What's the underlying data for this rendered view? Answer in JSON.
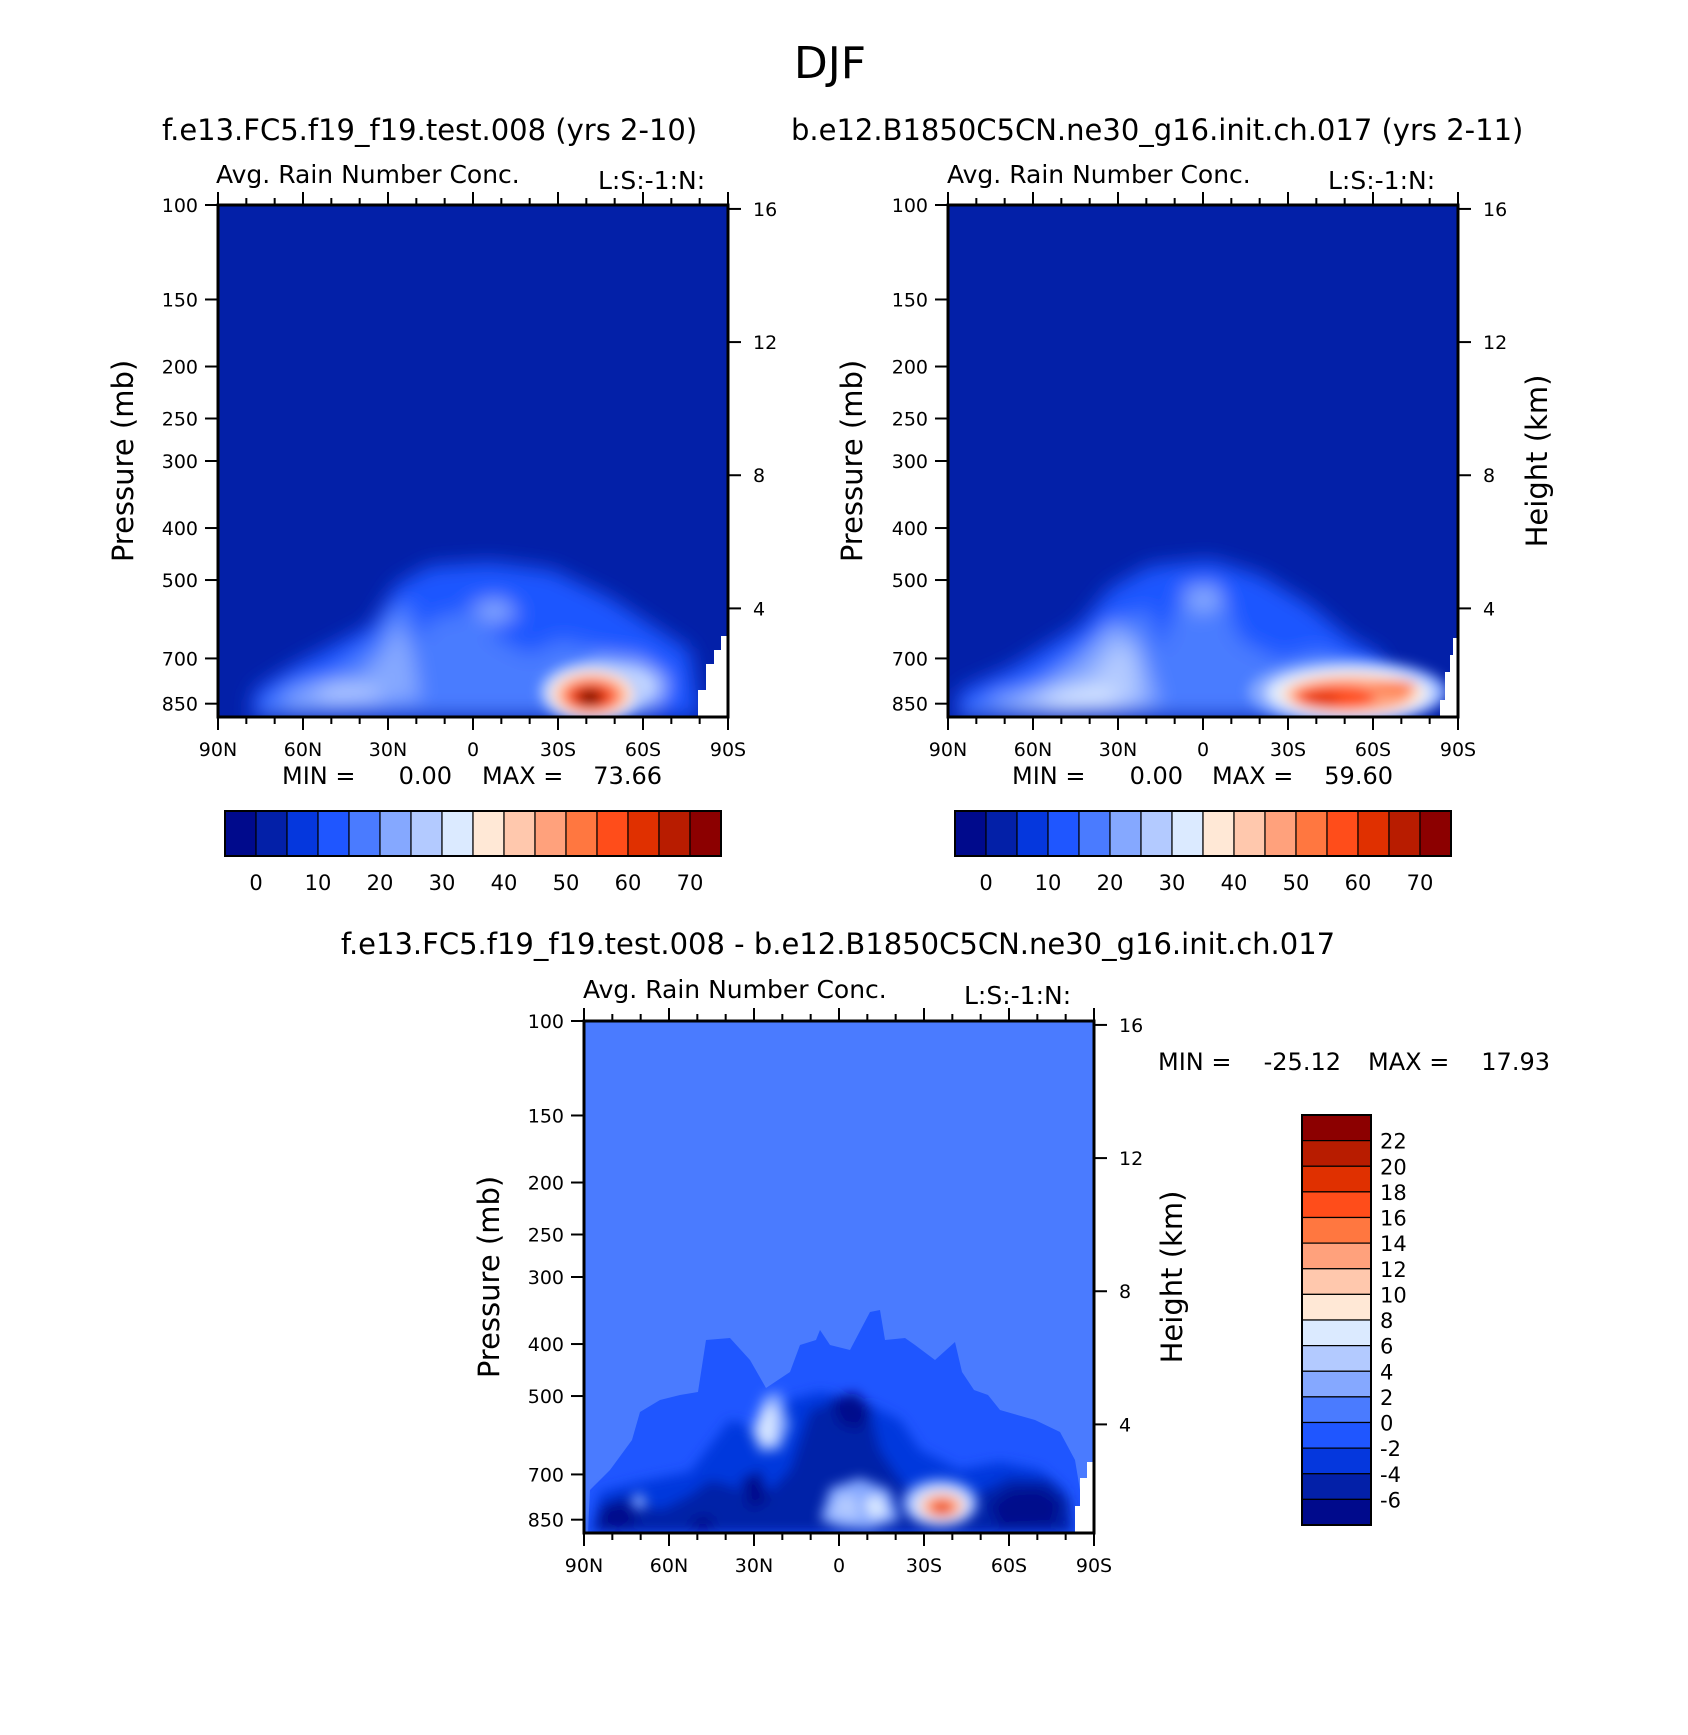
{
  "figure_title": "DJF",
  "difference_title": "f.e13.FC5.f19_f19.test.008 - b.e12.B1850C5CN.ne30_g16.init.ch.017",
  "colors": {
    "abs": [
      "#000a8c",
      "#0320a8",
      "#0537dd",
      "#1f56ff",
      "#4a7bff",
      "#85a8ff",
      "#b3caff",
      "#dbeaff",
      "#ffe8d6",
      "#ffc8ad",
      "#ffa17c",
      "#ff7740",
      "#ff4d1a",
      "#e03000",
      "#b81c00",
      "#8c0000"
    ],
    "diff": [
      "#000a8c",
      "#0320a8",
      "#0537dd",
      "#1f56ff",
      "#4a7bff",
      "#85a8ff",
      "#b3caff",
      "#dbeaff",
      "#ffe8d6",
      "#ffc8ad",
      "#ffa17c",
      "#ff7740",
      "#ff4d1a",
      "#e03000",
      "#b81c00",
      "#8c0000"
    ]
  },
  "chart_data": [
    {
      "type": "contour",
      "run_title": "f.e13.FC5.f19_f19.test.008 (yrs 2-10)",
      "title": "Avg. Rain Number Conc.",
      "subtitle": "L:S:-1:N:",
      "xlabel": "",
      "ylabel": "Pressure (mb)",
      "ylabel_right": "",
      "xticks": [
        "90N",
        "60N",
        "30N",
        "0",
        "30S",
        "60S",
        "90S"
      ],
      "yticks": [
        "100",
        "150",
        "200",
        "250",
        "300",
        "400",
        "500",
        "700",
        "850"
      ],
      "yticks_right": [
        "16",
        "12",
        "8",
        "4"
      ],
      "min_label": "MIN =",
      "min_value": "0.00",
      "max_label": "MAX =",
      "max_value": "73.66",
      "colorbar_labels": [
        "0",
        "10",
        "20",
        "30",
        "40",
        "50",
        "60",
        "70"
      ],
      "peak": {
        "lat": -42,
        "pressure": 850,
        "value": 73.66
      }
    },
    {
      "type": "contour",
      "run_title": "b.e12.B1850C5CN.ne30_g16.init.ch.017 (yrs 2-11)",
      "title": "Avg. Rain Number Conc.",
      "subtitle": "L:S:-1:N:",
      "xlabel": "",
      "ylabel": "Pressure (mb)",
      "ylabel_right": "Height (km)",
      "xticks": [
        "90N",
        "60N",
        "30N",
        "0",
        "30S",
        "60S",
        "90S"
      ],
      "yticks": [
        "100",
        "150",
        "200",
        "250",
        "300",
        "400",
        "500",
        "700",
        "850"
      ],
      "yticks_right": [
        "16",
        "12",
        "8",
        "4"
      ],
      "min_label": "MIN =",
      "min_value": "0.00",
      "max_label": "MAX =",
      "max_value": "59.60",
      "colorbar_labels": [
        "0",
        "10",
        "20",
        "30",
        "40",
        "50",
        "60",
        "70"
      ],
      "peak": {
        "lat": -48,
        "pressure": 840,
        "value": 59.6
      }
    },
    {
      "type": "contour",
      "title": "Avg. Rain Number Conc.",
      "subtitle": "L:S:-1:N:",
      "xlabel": "",
      "ylabel": "Pressure (mb)",
      "ylabel_right": "Height (km)",
      "xticks": [
        "90N",
        "60N",
        "30N",
        "0",
        "30S",
        "60S",
        "90S"
      ],
      "yticks": [
        "100",
        "150",
        "200",
        "250",
        "300",
        "400",
        "500",
        "700",
        "850"
      ],
      "yticks_right": [
        "16",
        "12",
        "8",
        "4"
      ],
      "min_label": "MIN =",
      "min_value": "-25.12",
      "max_label": "MAX =",
      "max_value": "17.93",
      "colorbar_labels": [
        "22",
        "20",
        "18",
        "16",
        "14",
        "12",
        "10",
        "8",
        "6",
        "4",
        "2",
        "0",
        "-2",
        "-4",
        "-6"
      ],
      "peak": {
        "lat": -38,
        "pressure": 860,
        "value": 17.93
      }
    }
  ]
}
